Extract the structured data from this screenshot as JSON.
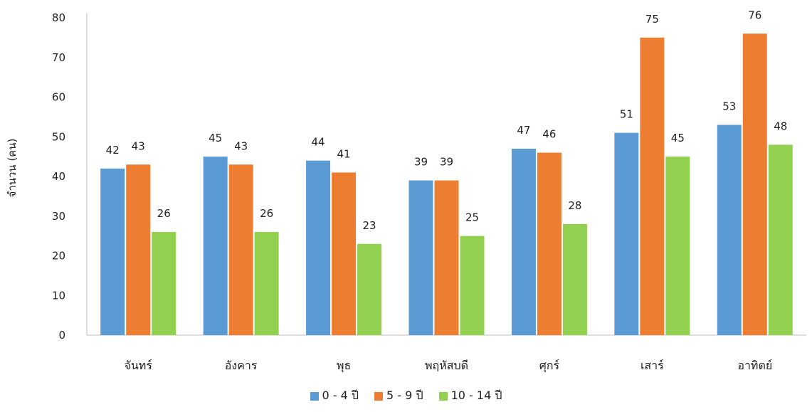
{
  "chart_data": {
    "type": "bar",
    "title": "",
    "xlabel": "",
    "ylabel": "จำนวน (คน)",
    "ylim": [
      0,
      80
    ],
    "yticks": [
      0,
      10,
      20,
      30,
      40,
      50,
      60,
      70,
      80
    ],
    "grid": false,
    "legend_position": "bottom",
    "categories": [
      "จันทร์",
      "อังคาร",
      "พุธ",
      "พฤหัสบดี",
      "ศุกร์",
      "เสาร์",
      "อาทิตย์"
    ],
    "series": [
      {
        "name": "0 - 4 ปี",
        "color": "#5B9BD5",
        "values": [
          42,
          45,
          44,
          39,
          47,
          51,
          53
        ]
      },
      {
        "name": "5 - 9 ปี",
        "color": "#ED7D31",
        "values": [
          43,
          43,
          41,
          39,
          46,
          75,
          76
        ]
      },
      {
        "name": "10 - 14 ปี",
        "color": "#92D050",
        "values": [
          26,
          26,
          23,
          25,
          28,
          45,
          48
        ]
      }
    ]
  }
}
